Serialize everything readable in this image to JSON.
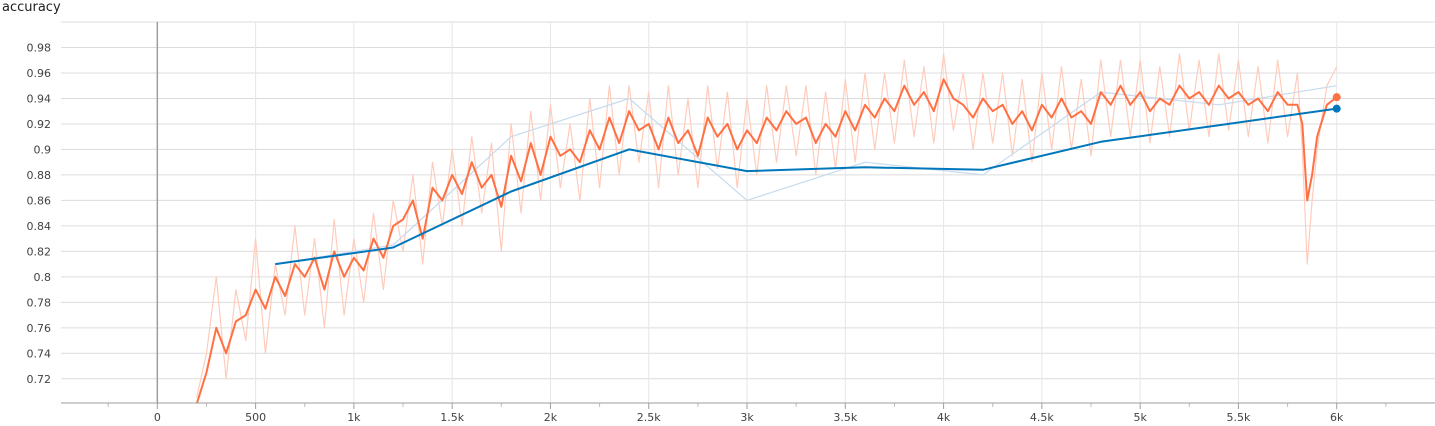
{
  "chart_data": {
    "type": "line",
    "title": "accuracy",
    "xlabel": "",
    "ylabel": "",
    "xlim": [
      -490,
      6500
    ],
    "ylim": [
      0.701,
      1.0
    ],
    "x_ticks": [
      {
        "value": 0,
        "label": "0"
      },
      {
        "value": 500,
        "label": "500"
      },
      {
        "value": 1000,
        "label": "1k"
      },
      {
        "value": 1500,
        "label": "1.5k"
      },
      {
        "value": 2000,
        "label": "2k"
      },
      {
        "value": 2500,
        "label": "2.5k"
      },
      {
        "value": 3000,
        "label": "3k"
      },
      {
        "value": 3500,
        "label": "3.5k"
      },
      {
        "value": 4000,
        "label": "4k"
      },
      {
        "value": 4500,
        "label": "4.5k"
      },
      {
        "value": 5000,
        "label": "5k"
      },
      {
        "value": 5500,
        "label": "5.5k"
      },
      {
        "value": 6000,
        "label": "6k"
      }
    ],
    "y_ticks": [
      {
        "value": 0.72,
        "label": "0.72"
      },
      {
        "value": 0.74,
        "label": "0.74"
      },
      {
        "value": 0.76,
        "label": "0.76"
      },
      {
        "value": 0.78,
        "label": "0.78"
      },
      {
        "value": 0.8,
        "label": "0.8"
      },
      {
        "value": 0.82,
        "label": "0.82"
      },
      {
        "value": 0.84,
        "label": "0.84"
      },
      {
        "value": 0.86,
        "label": "0.86"
      },
      {
        "value": 0.88,
        "label": "0.88"
      },
      {
        "value": 0.9,
        "label": "0.9"
      },
      {
        "value": 0.92,
        "label": "0.92"
      },
      {
        "value": 0.94,
        "label": "0.94"
      },
      {
        "value": 0.96,
        "label": "0.96"
      },
      {
        "value": 0.98,
        "label": "0.98"
      }
    ],
    "grid": true,
    "series": [
      {
        "color": "#ff7043",
        "raw_color": "#ffccbc",
        "x": [
          200,
          250,
          300,
          350,
          400,
          450,
          500,
          550,
          600,
          650,
          700,
          750,
          800,
          850,
          900,
          950,
          1000,
          1050,
          1100,
          1150,
          1200,
          1250,
          1300,
          1350,
          1400,
          1450,
          1500,
          1550,
          1600,
          1650,
          1700,
          1750,
          1800,
          1850,
          1900,
          1950,
          2000,
          2050,
          2100,
          2150,
          2200,
          2250,
          2300,
          2350,
          2400,
          2450,
          2500,
          2550,
          2600,
          2650,
          2700,
          2750,
          2800,
          2850,
          2900,
          2950,
          3000,
          3050,
          3100,
          3150,
          3200,
          3250,
          3300,
          3350,
          3400,
          3450,
          3500,
          3550,
          3600,
          3650,
          3700,
          3750,
          3800,
          3850,
          3900,
          3950,
          4000,
          4050,
          4100,
          4150,
          4200,
          4250,
          4300,
          4350,
          4400,
          4450,
          4500,
          4550,
          4600,
          4650,
          4700,
          4750,
          4800,
          4850,
          4900,
          4950,
          5000,
          5050,
          5100,
          5150,
          5200,
          5250,
          5300,
          5350,
          5400,
          5450,
          5500,
          5550,
          5600,
          5650,
          5700,
          5750,
          5800,
          5825,
          5850,
          5875,
          5900,
          5950,
          6000
        ],
        "smoothed": [
          0.7,
          0.725,
          0.76,
          0.74,
          0.765,
          0.77,
          0.79,
          0.775,
          0.8,
          0.785,
          0.81,
          0.8,
          0.815,
          0.79,
          0.82,
          0.8,
          0.815,
          0.805,
          0.83,
          0.815,
          0.84,
          0.845,
          0.86,
          0.83,
          0.87,
          0.86,
          0.88,
          0.865,
          0.89,
          0.87,
          0.88,
          0.855,
          0.895,
          0.875,
          0.905,
          0.88,
          0.91,
          0.895,
          0.9,
          0.89,
          0.915,
          0.9,
          0.925,
          0.905,
          0.93,
          0.915,
          0.92,
          0.9,
          0.925,
          0.905,
          0.915,
          0.895,
          0.925,
          0.91,
          0.92,
          0.9,
          0.915,
          0.905,
          0.925,
          0.915,
          0.93,
          0.92,
          0.925,
          0.905,
          0.92,
          0.91,
          0.93,
          0.915,
          0.935,
          0.925,
          0.94,
          0.93,
          0.95,
          0.935,
          0.945,
          0.93,
          0.955,
          0.94,
          0.935,
          0.925,
          0.94,
          0.93,
          0.935,
          0.92,
          0.93,
          0.915,
          0.935,
          0.925,
          0.94,
          0.925,
          0.93,
          0.92,
          0.945,
          0.935,
          0.95,
          0.935,
          0.945,
          0.93,
          0.94,
          0.935,
          0.95,
          0.94,
          0.945,
          0.935,
          0.95,
          0.94,
          0.945,
          0.935,
          0.94,
          0.93,
          0.945,
          0.935,
          0.935,
          0.92,
          0.86,
          0.88,
          0.91,
          0.935,
          0.941
        ],
        "raw": [
          0.705,
          0.74,
          0.8,
          0.72,
          0.79,
          0.75,
          0.83,
          0.74,
          0.81,
          0.77,
          0.84,
          0.77,
          0.83,
          0.76,
          0.845,
          0.77,
          0.83,
          0.78,
          0.85,
          0.79,
          0.86,
          0.82,
          0.88,
          0.81,
          0.89,
          0.84,
          0.9,
          0.84,
          0.91,
          0.85,
          0.905,
          0.82,
          0.92,
          0.85,
          0.93,
          0.86,
          0.935,
          0.87,
          0.92,
          0.86,
          0.94,
          0.87,
          0.95,
          0.88,
          0.95,
          0.89,
          0.945,
          0.87,
          0.95,
          0.88,
          0.94,
          0.87,
          0.95,
          0.885,
          0.945,
          0.87,
          0.94,
          0.88,
          0.95,
          0.89,
          0.95,
          0.895,
          0.95,
          0.88,
          0.945,
          0.885,
          0.955,
          0.89,
          0.96,
          0.9,
          0.96,
          0.905,
          0.97,
          0.91,
          0.965,
          0.905,
          0.975,
          0.915,
          0.96,
          0.9,
          0.96,
          0.905,
          0.96,
          0.895,
          0.955,
          0.89,
          0.96,
          0.9,
          0.965,
          0.9,
          0.955,
          0.895,
          0.97,
          0.91,
          0.97,
          0.91,
          0.97,
          0.905,
          0.965,
          0.91,
          0.975,
          0.915,
          0.97,
          0.91,
          0.975,
          0.915,
          0.97,
          0.91,
          0.965,
          0.905,
          0.97,
          0.91,
          0.96,
          0.9,
          0.81,
          0.86,
          0.9,
          0.95,
          0.965
        ]
      },
      {
        "color": "#0077bb",
        "raw_color": "#c6dbef",
        "x": [
          600,
          1200,
          1800,
          2400,
          3000,
          3600,
          4200,
          4800,
          5400,
          6000
        ],
        "smoothed": [
          0.81,
          0.823,
          0.867,
          0.9,
          0.883,
          0.886,
          0.884,
          0.906,
          0.919,
          0.932
        ],
        "raw": [
          0.81,
          0.825,
          0.91,
          0.94,
          0.86,
          0.89,
          0.88,
          0.945,
          0.935,
          0.95
        ]
      }
    ]
  }
}
